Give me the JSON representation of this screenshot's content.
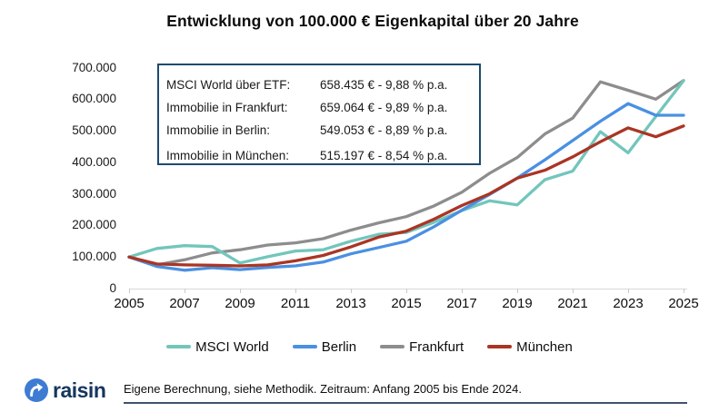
{
  "title": "Entwicklung von 100.000 € Eigenkapital über 20 Jahre",
  "info_box": {
    "rows": [
      {
        "label": "MSCI World über ETF:",
        "value": "658.435 € - 9,88 % p.a."
      },
      {
        "label": "Immobilie in Frankfurt:",
        "value": "659.064 € - 9,89 % p.a."
      },
      {
        "label": "Immobilie in Berlin:",
        "value": "549.053 € - 8,89 % p.a."
      },
      {
        "label": "Immobilie in München:",
        "value": "515.197 € - 8,54 % p.a."
      }
    ]
  },
  "chart_data": {
    "type": "line",
    "x": [
      2005,
      2006,
      2007,
      2008,
      2009,
      2010,
      2011,
      2012,
      2013,
      2014,
      2015,
      2016,
      2017,
      2018,
      2019,
      2020,
      2021,
      2022,
      2023,
      2024,
      2025
    ],
    "x_tick_labels": [
      "2005",
      "2007",
      "2009",
      "2011",
      "2013",
      "2015",
      "2017",
      "2019",
      "2021",
      "2023",
      "2025"
    ],
    "y_tick_values": [
      0,
      100000,
      200000,
      300000,
      400000,
      500000,
      600000,
      700000
    ],
    "y_tick_labels": [
      "0",
      "100.000",
      "200.000",
      "300.000",
      "400.000",
      "500.000",
      "600.000",
      "700.000"
    ],
    "ylim": [
      0,
      700000
    ],
    "grid": false,
    "legend_position": "bottom",
    "series": [
      {
        "name": "MSCI World",
        "color": "#72c6bc",
        "values": [
          100000,
          127000,
          136000,
          133000,
          81000,
          101000,
          119000,
          123000,
          150000,
          172000,
          178000,
          210000,
          247000,
          278000,
          265000,
          345000,
          372000,
          497000,
          430000,
          545000,
          658435
        ]
      },
      {
        "name": "Berlin",
        "color": "#4a90e2",
        "values": [
          100000,
          70000,
          58000,
          66000,
          60000,
          67000,
          72000,
          84000,
          110000,
          130000,
          150000,
          196000,
          248000,
          298000,
          350000,
          408000,
          469000,
          530000,
          586000,
          549000,
          549053
        ]
      },
      {
        "name": "Frankfurt",
        "color": "#8d8d8d",
        "values": [
          100000,
          75000,
          91000,
          113000,
          123000,
          138000,
          145000,
          158000,
          185000,
          208000,
          228000,
          262000,
          305000,
          365000,
          415000,
          490000,
          540000,
          655000,
          628000,
          600000,
          659064
        ]
      },
      {
        "name": "München",
        "color": "#aa3524",
        "values": [
          100000,
          78000,
          75000,
          74000,
          72000,
          75000,
          88000,
          105000,
          132000,
          163000,
          182000,
          220000,
          263000,
          300000,
          350000,
          375000,
          417000,
          465000,
          509000,
          481000,
          515197
        ]
      }
    ]
  },
  "footer": {
    "note": "Eigene Berechnung, siehe Methodik. Zeitraum: Anfang 2005 bis Ende 2024.",
    "logo_text": "raisin"
  }
}
